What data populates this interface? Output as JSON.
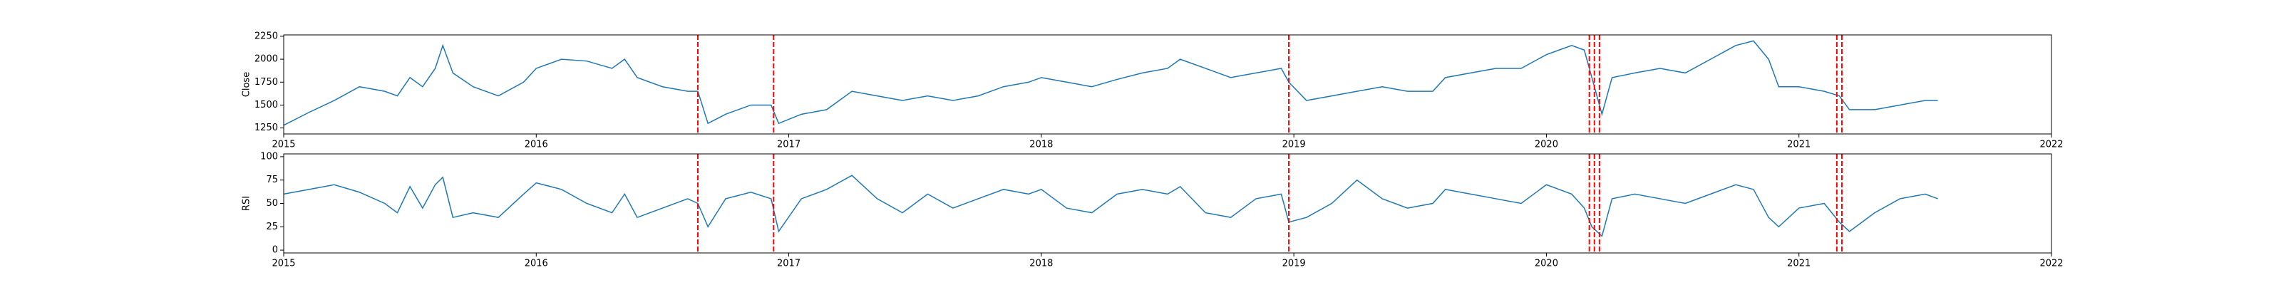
{
  "chart_data": [
    {
      "type": "line",
      "ylabel": "Close",
      "color": "#1f77b4",
      "vline_color": "red",
      "x": [
        2015.0,
        2015.1,
        2015.2,
        2015.3,
        2015.4,
        2015.45,
        2015.5,
        2015.55,
        2015.6,
        2015.63,
        2015.67,
        2015.75,
        2015.85,
        2015.95,
        2016.0,
        2016.1,
        2016.2,
        2016.3,
        2016.35,
        2016.4,
        2016.5,
        2016.6,
        2016.64,
        2016.68,
        2016.75,
        2016.85,
        2016.93,
        2016.96,
        2017.05,
        2017.15,
        2017.25,
        2017.35,
        2017.45,
        2017.55,
        2017.65,
        2017.75,
        2017.85,
        2017.95,
        2018.0,
        2018.1,
        2018.2,
        2018.3,
        2018.4,
        2018.5,
        2018.55,
        2018.65,
        2018.75,
        2018.85,
        2018.95,
        2018.98,
        2019.05,
        2019.15,
        2019.25,
        2019.35,
        2019.45,
        2019.55,
        2019.6,
        2019.7,
        2019.8,
        2019.9,
        2020.0,
        2020.05,
        2020.1,
        2020.15,
        2020.18,
        2020.22,
        2020.26,
        2020.35,
        2020.45,
        2020.55,
        2020.65,
        2020.75,
        2020.82,
        2020.88,
        2020.92,
        2021.0,
        2021.1,
        2021.16,
        2021.2,
        2021.3,
        2021.4,
        2021.5,
        2021.55
      ],
      "values": [
        1280,
        1420,
        1550,
        1700,
        1650,
        1600,
        1800,
        1700,
        1900,
        2150,
        1850,
        1700,
        1600,
        1750,
        1900,
        2000,
        1980,
        1900,
        2000,
        1800,
        1700,
        1650,
        1650,
        1300,
        1400,
        1500,
        1500,
        1300,
        1400,
        1450,
        1650,
        1600,
        1550,
        1600,
        1550,
        1600,
        1700,
        1750,
        1800,
        1750,
        1700,
        1780,
        1850,
        1900,
        2000,
        1900,
        1800,
        1850,
        1900,
        1750,
        1550,
        1600,
        1650,
        1700,
        1650,
        1650,
        1800,
        1850,
        1900,
        1900,
        2050,
        2100,
        2150,
        2100,
        1800,
        1400,
        1800,
        1850,
        1900,
        1850,
        2000,
        2150,
        2200,
        2000,
        1700,
        1700,
        1650,
        1600,
        1450,
        1450,
        1500,
        1550,
        1550
      ],
      "vlines": [
        2016.64,
        2016.94,
        2018.98,
        2020.17,
        2020.19,
        2020.21,
        2021.15,
        2021.17
      ],
      "xlim": [
        2015,
        2022
      ],
      "xticks": [
        2015,
        2016,
        2017,
        2018,
        2019,
        2020,
        2021,
        2022
      ],
      "ylim": [
        1185,
        2265
      ],
      "yticks": [
        1250,
        1500,
        1750,
        2000,
        2250
      ]
    },
    {
      "type": "line",
      "ylabel": "RSI",
      "color": "#1f77b4",
      "vline_color": "red",
      "x": [
        2015.0,
        2015.1,
        2015.2,
        2015.3,
        2015.4,
        2015.45,
        2015.5,
        2015.55,
        2015.6,
        2015.63,
        2015.67,
        2015.75,
        2015.85,
        2015.95,
        2016.0,
        2016.1,
        2016.2,
        2016.3,
        2016.35,
        2016.4,
        2016.5,
        2016.6,
        2016.64,
        2016.68,
        2016.75,
        2016.85,
        2016.93,
        2016.96,
        2017.05,
        2017.15,
        2017.25,
        2017.35,
        2017.45,
        2017.55,
        2017.65,
        2017.75,
        2017.85,
        2017.95,
        2018.0,
        2018.1,
        2018.2,
        2018.3,
        2018.4,
        2018.5,
        2018.55,
        2018.65,
        2018.75,
        2018.85,
        2018.95,
        2018.98,
        2019.05,
        2019.15,
        2019.25,
        2019.35,
        2019.45,
        2019.55,
        2019.6,
        2019.7,
        2019.8,
        2019.9,
        2020.0,
        2020.05,
        2020.1,
        2020.15,
        2020.18,
        2020.22,
        2020.26,
        2020.35,
        2020.45,
        2020.55,
        2020.65,
        2020.75,
        2020.82,
        2020.88,
        2020.92,
        2021.0,
        2021.1,
        2021.16,
        2021.2,
        2021.3,
        2021.4,
        2021.5,
        2021.55
      ],
      "values": [
        60,
        65,
        70,
        62,
        50,
        40,
        68,
        45,
        70,
        78,
        35,
        40,
        35,
        60,
        72,
        65,
        50,
        40,
        60,
        35,
        45,
        55,
        50,
        25,
        55,
        62,
        55,
        20,
        55,
        65,
        80,
        55,
        40,
        60,
        45,
        55,
        65,
        60,
        65,
        45,
        40,
        60,
        65,
        60,
        68,
        40,
        35,
        55,
        60,
        30,
        35,
        50,
        75,
        55,
        45,
        50,
        65,
        60,
        55,
        50,
        70,
        65,
        60,
        45,
        25,
        15,
        55,
        60,
        55,
        50,
        60,
        70,
        65,
        35,
        25,
        45,
        50,
        30,
        20,
        40,
        55,
        60,
        55
      ],
      "vlines": [
        2016.64,
        2016.94,
        2018.98,
        2020.17,
        2020.19,
        2020.21,
        2021.15,
        2021.17
      ],
      "xlim": [
        2015,
        2022
      ],
      "xticks": [
        2015,
        2016,
        2017,
        2018,
        2019,
        2020,
        2021,
        2022
      ],
      "ylim": [
        -3,
        103
      ],
      "yticks": [
        0,
        25,
        50,
        75,
        100
      ]
    }
  ]
}
